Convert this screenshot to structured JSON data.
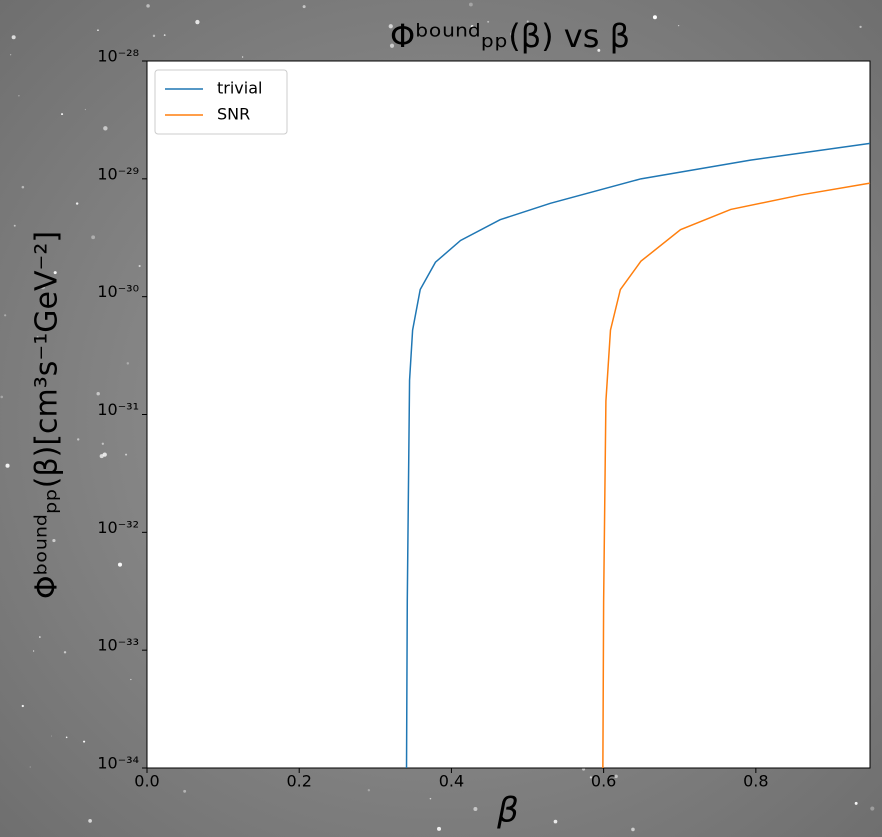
{
  "chart_data": {
    "type": "line",
    "title": "Φᵇᵒᵘⁿᵈₚₚ(β) vs β",
    "x_label": "β",
    "y_label": "Φᵇᵒᵘⁿᵈₚₚ(β)[cm³s⁻¹GeV⁻²]",
    "yscale": "log",
    "legend": "upper left",
    "xlim": [
      0,
      0.95
    ],
    "ylim": [
      1e-34,
      1e-28
    ],
    "xticks": [
      {
        "value": 0,
        "label": "0.0"
      },
      0.2,
      0.4,
      0.6,
      0.8
    ],
    "yticks": [
      {
        "value": 1e-34,
        "label": "10⁻³⁴"
      },
      {
        "value": 1e-33,
        "label": "10⁻³³"
      },
      {
        "value": 1e-32,
        "label": "10⁻³²"
      },
      {
        "value": 1e-31,
        "label": "10⁻³¹"
      },
      {
        "value": 1e-30,
        "label": "10⁻³⁰"
      },
      {
        "value": 1e-29,
        "label": "10⁻²⁹"
      },
      {
        "value": 1e-28,
        "label": "10⁻²⁸"
      }
    ],
    "series": [
      {
        "name": "trivial",
        "color": "#1f77b4",
        "x": [
          0.341,
          0.342,
          0.345,
          0.349,
          0.359,
          0.379,
          0.412,
          0.464,
          0.53,
          0.649,
          0.793,
          0.95
        ],
        "values": [
          1e-34,
          2.6e-33,
          1.95e-31,
          5.2e-31,
          1.15e-30,
          1.96e-30,
          3e-30,
          4.5e-30,
          6.2e-30,
          1e-29,
          1.44e-29,
          2e-29
        ]
      },
      {
        "name": "SNR",
        "color": "#ff7f0e",
        "x": [
          0.599,
          0.6,
          0.603,
          0.609,
          0.622,
          0.649,
          0.701,
          0.767,
          0.859,
          0.95
        ],
        "values": [
          1e-34,
          2.6e-33,
          1.3e-31,
          5.2e-31,
          1.15e-30,
          2e-30,
          3.7e-30,
          5.5e-30,
          7.3e-30,
          9.2e-30
        ]
      }
    ]
  }
}
